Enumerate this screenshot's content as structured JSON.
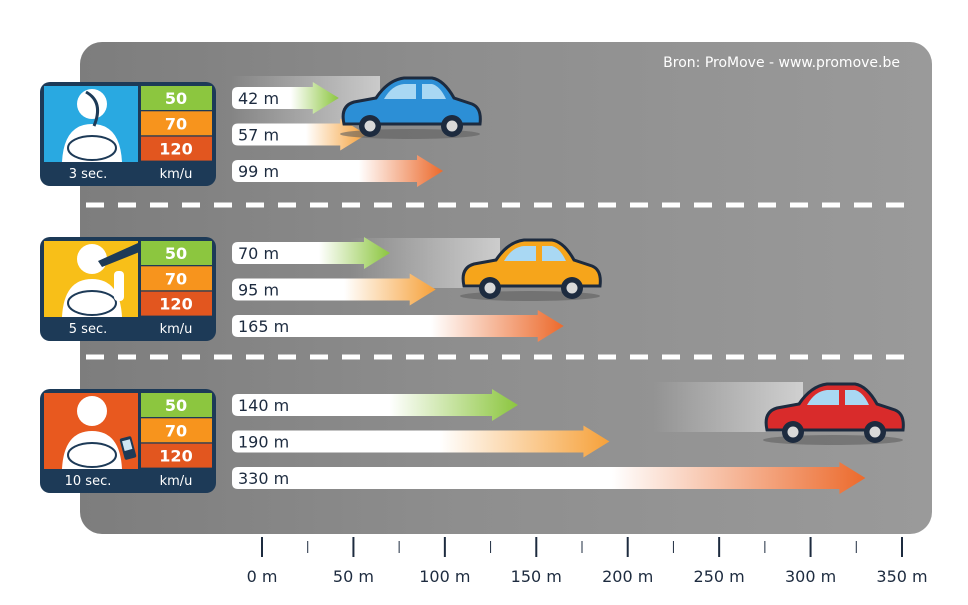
{
  "source": "Bron: ProMove - www.promove.be",
  "colors": {
    "background": "#8e8e8e",
    "lane_divider": "#ffffff",
    "badge_border": "#1d3a57",
    "speed_50": "#8cc63f",
    "speed_70": "#f7941d",
    "speed_120": "#e2561f",
    "arrow_50": "#8cc63f",
    "arrow_70": "#f6a13a",
    "arrow_120": "#ec6a2c",
    "car_blue": "#2c8fd6",
    "car_yellow": "#f6a51b",
    "car_red": "#d92b2b"
  },
  "chart_data": {
    "type": "bar",
    "unit": "m",
    "xlim": [
      0,
      350
    ],
    "x_ticks": [
      "0 m",
      "50 m",
      "100 m",
      "150 m",
      "200 m",
      "250 m",
      "300 m",
      "350 m"
    ],
    "speed_unit_label": "km/u",
    "speeds": [
      "50",
      "70",
      "120"
    ],
    "groups": [
      {
        "distraction_time": "3 sec.",
        "icon": "seated-driver-icon",
        "badge_color": "#29a9e1",
        "car": "car_blue",
        "values": [
          42,
          57,
          99
        ],
        "labels": [
          "42 m",
          "57 m",
          "99 m"
        ]
      },
      {
        "distraction_time": "5 sec.",
        "icon": "driver-drinking-icon",
        "badge_color": "#f8bf18",
        "car": "car_yellow",
        "values": [
          70,
          95,
          165
        ],
        "labels": [
          "70 m",
          "95 m",
          "165 m"
        ]
      },
      {
        "distraction_time": "10 sec.",
        "icon": "driver-phone-icon",
        "badge_color": "#e8591f",
        "car": "car_red",
        "values": [
          140,
          190,
          330
        ],
        "labels": [
          "140 m",
          "190 m",
          "330 m"
        ]
      }
    ]
  }
}
